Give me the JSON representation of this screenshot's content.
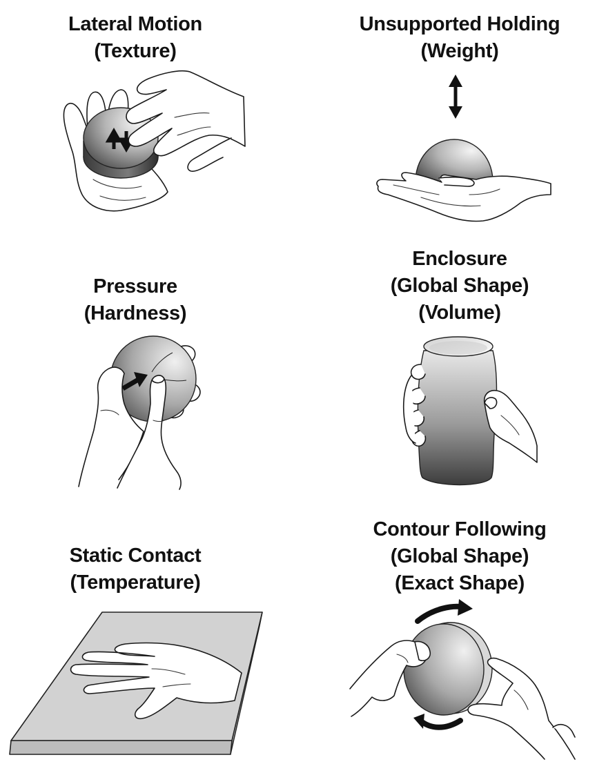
{
  "colors": {
    "background": "#ffffff",
    "text": "#111111",
    "outline": "#1a1a1a",
    "object_light": "#f2f2f2",
    "object_dark": "#444444",
    "arrow": "#111111"
  },
  "panels": [
    {
      "id": "lateral-motion",
      "lines": [
        "Lateral Motion",
        "(Texture)"
      ]
    },
    {
      "id": "unsupported-holding",
      "lines": [
        "Unsupported Holding",
        "(Weight)"
      ]
    },
    {
      "id": "pressure",
      "lines": [
        "Pressure",
        "(Hardness)"
      ]
    },
    {
      "id": "enclosure",
      "lines": [
        "Enclosure",
        "(Global Shape)",
        "(Volume)"
      ]
    },
    {
      "id": "static-contact",
      "lines": [
        "Static Contact",
        "(Temperature)"
      ]
    },
    {
      "id": "contour-following",
      "lines": [
        "Contour Following",
        "(Global Shape)",
        "(Exact Shape)"
      ]
    }
  ],
  "icons": {
    "lateral_motion": "hand-rubbing-disc-icon",
    "unsupported_holding": "hand-holding-sphere-icon",
    "pressure": "finger-pressing-sphere-icon",
    "enclosure": "hands-enclosing-cylinder-icon",
    "static_contact": "hand-on-slab-icon",
    "contour_following": "fingers-tracing-sphere-icon"
  }
}
